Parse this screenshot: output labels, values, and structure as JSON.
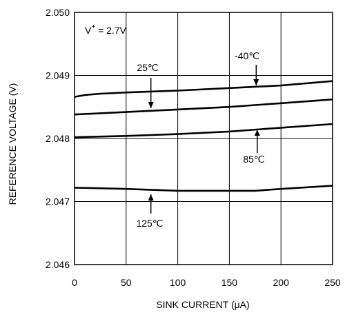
{
  "chart_data": {
    "type": "line",
    "title": "",
    "xlabel": "SINK CURRENT (μA)",
    "ylabel": "REFERENCE VOLTAGE (V)",
    "xlim": [
      0,
      250
    ],
    "ylim": [
      2.046,
      2.05
    ],
    "grid": true,
    "x_ticks": [
      "0",
      "50",
      "100",
      "150",
      "200",
      "250"
    ],
    "y_ticks": [
      "2.046",
      "2.047",
      "2.048",
      "2.049",
      "2.050"
    ],
    "annotation": {
      "base": "V",
      "sup": "+",
      "rest": " = 2.7V"
    },
    "series": [
      {
        "name": "-40℃",
        "x": [
          0,
          10,
          25,
          50,
          100,
          150,
          200,
          250
        ],
        "y": [
          2.04866,
          2.04869,
          2.04871,
          2.04873,
          2.04876,
          2.0488,
          2.04884,
          2.04891
        ]
      },
      {
        "name": "25℃",
        "x": [
          0,
          50,
          100,
          150,
          200,
          250
        ],
        "y": [
          2.04838,
          2.04842,
          2.04846,
          2.0485,
          2.04856,
          2.04862
        ]
      },
      {
        "name": "85℃",
        "x": [
          0,
          50,
          100,
          150,
          200,
          250
        ],
        "y": [
          2.04802,
          2.04804,
          2.04807,
          2.04811,
          2.04817,
          2.04823
        ]
      },
      {
        "name": "125℃",
        "x": [
          0,
          50,
          100,
          150,
          175,
          200,
          250
        ],
        "y": [
          2.04722,
          2.0472,
          2.04717,
          2.04717,
          2.04717,
          2.0472,
          2.04725
        ]
      }
    ],
    "labels": [
      {
        "text": "-40℃",
        "arrow_x": 176
      },
      {
        "text": "25℃",
        "arrow_x": 74
      },
      {
        "text": "85℃",
        "arrow_x": 177
      },
      {
        "text": "125℃",
        "arrow_x": 74
      }
    ]
  }
}
